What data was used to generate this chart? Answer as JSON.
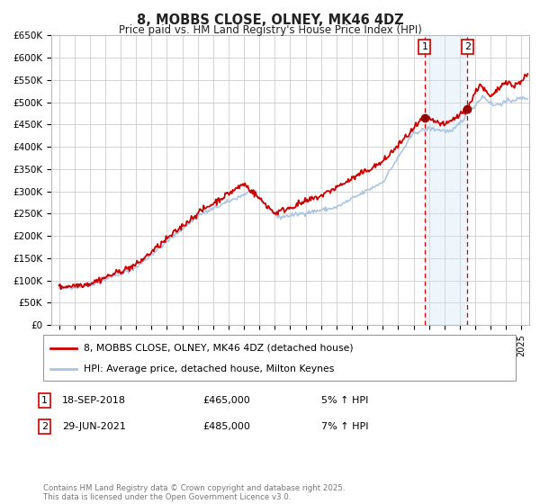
{
  "title": "8, MOBBS CLOSE, OLNEY, MK46 4DZ",
  "subtitle": "Price paid vs. HM Land Registry's House Price Index (HPI)",
  "ylim": [
    0,
    650000
  ],
  "xlim": [
    1994.5,
    2025.5
  ],
  "yticks": [
    0,
    50000,
    100000,
    150000,
    200000,
    250000,
    300000,
    350000,
    400000,
    450000,
    500000,
    550000,
    600000,
    650000
  ],
  "ytick_labels": [
    "£0",
    "£50K",
    "£100K",
    "£150K",
    "£200K",
    "£250K",
    "£300K",
    "£350K",
    "£400K",
    "£450K",
    "£500K",
    "£550K",
    "£600K",
    "£650K"
  ],
  "hpi_color": "#a8c4e0",
  "price_color": "#cc0000",
  "marker_color": "#990000",
  "shade_color": "#d0e4f5",
  "sale1_x": 2018.72,
  "sale1_y": 465000,
  "sale2_x": 2021.49,
  "sale2_y": 485000,
  "vline_color": "#cc0000",
  "legend_entries": [
    "8, MOBBS CLOSE, OLNEY, MK46 4DZ (detached house)",
    "HPI: Average price, detached house, Milton Keynes"
  ],
  "table_rows": [
    {
      "num": "1",
      "date": "18-SEP-2018",
      "price": "£465,000",
      "change": "5% ↑ HPI"
    },
    {
      "num": "2",
      "date": "29-JUN-2021",
      "price": "£485,000",
      "change": "7% ↑ HPI"
    }
  ],
  "footer": "Contains HM Land Registry data © Crown copyright and database right 2025.\nThis data is licensed under the Open Government Licence v3.0.",
  "background_color": "#ffffff",
  "grid_color": "#cccccc"
}
